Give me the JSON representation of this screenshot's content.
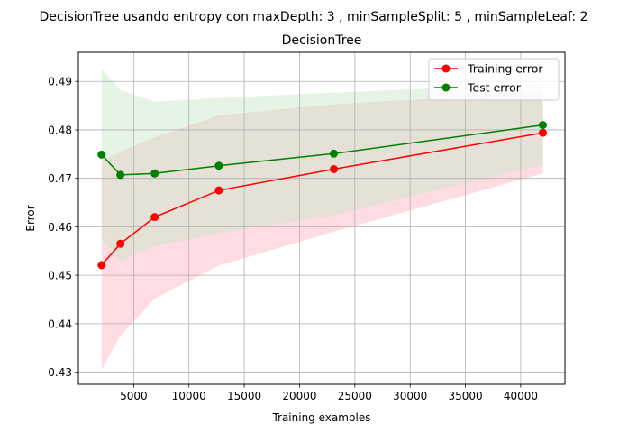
{
  "chart_data": {
    "type": "line",
    "suptitle": "DecisionTree usando entropy con maxDepth: 3 , minSampleSplit: 5 , minSampleLeaf: 2",
    "title": "DecisionTree",
    "xlabel": "Training examples",
    "ylabel": "Error",
    "xlim": [
      0,
      44000
    ],
    "ylim": [
      0.4275,
      0.496
    ],
    "x_ticks": [
      5000,
      10000,
      15000,
      20000,
      25000,
      30000,
      35000,
      40000
    ],
    "y_ticks": [
      0.43,
      0.44,
      0.45,
      0.46,
      0.47,
      0.48,
      0.49
    ],
    "grid": true,
    "legend_position": "top-right",
    "series": [
      {
        "name": "Training error",
        "color": "#ff0000",
        "fill_color": "#ffc0cb",
        "x": [
          2100,
          3800,
          6900,
          12700,
          23100,
          42000
        ],
        "y": [
          0.4521,
          0.4565,
          0.462,
          0.4675,
          0.4719,
          0.4794
        ],
        "band_upper": [
          0.4735,
          0.4755,
          0.4785,
          0.483,
          0.4853,
          0.4877
        ],
        "band_lower": [
          0.4305,
          0.4375,
          0.4452,
          0.452,
          0.459,
          0.471
        ]
      },
      {
        "name": "Test error",
        "color": "#008000",
        "fill_color": "#c8e6c8",
        "x": [
          2100,
          3800,
          6900,
          12700,
          23100,
          42000
        ],
        "y": [
          0.4749,
          0.4707,
          0.471,
          0.4726,
          0.4751,
          0.481
        ],
        "band_upper": [
          0.4925,
          0.4882,
          0.4858,
          0.4866,
          0.4877,
          0.4895
        ],
        "band_lower": [
          0.4572,
          0.453,
          0.456,
          0.4587,
          0.4624,
          0.4728
        ]
      }
    ]
  }
}
